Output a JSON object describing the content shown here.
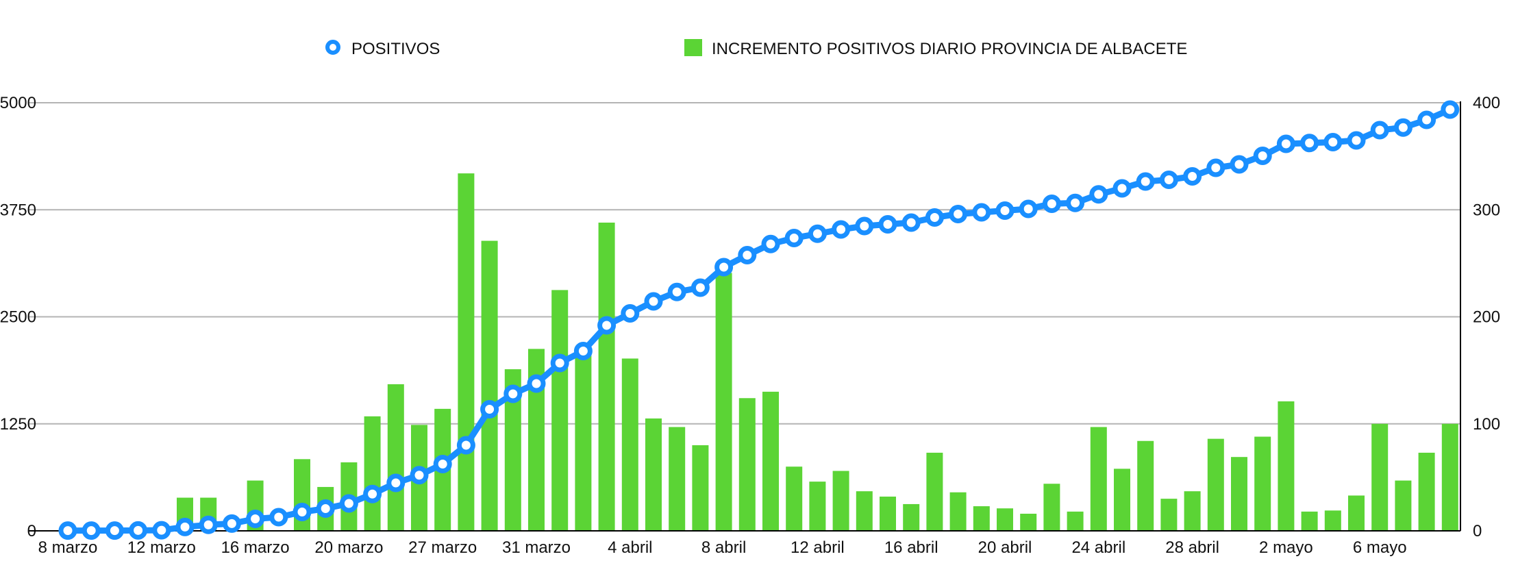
{
  "chart_data": {
    "type": "bar",
    "colors": {
      "line": "#1a8fff",
      "bars": "#5bd435",
      "grid": "#b4b4b4",
      "axis": "#000000"
    },
    "legend": {
      "placement": "top",
      "line_label": "POSITIVOS",
      "bar_label": "INCREMENTO POSITIVOS DIARIO PROVINCIA DE ALBACETE"
    },
    "left_axis": {
      "min": 0,
      "max": 5000,
      "ticks": [
        "0",
        "1250",
        "2500",
        "3750",
        "5000"
      ]
    },
    "right_axis": {
      "min": 0,
      "max": 400,
      "ticks": [
        "0",
        "100",
        "200",
        "300",
        "400"
      ]
    },
    "x_tick_labels": [
      "8 marzo",
      "12 marzo",
      "16 marzo",
      "20 marzo",
      "27 marzo",
      "31 marzo",
      "4 abril",
      "8 abril",
      "12 abril",
      "16 abril",
      "20 abril",
      "24 abril",
      "28 abril",
      "2 mayo",
      "6 mayo"
    ],
    "x_tick_positions": [
      0,
      4,
      8,
      12,
      16,
      20,
      24,
      28,
      32,
      36,
      40,
      44,
      48,
      52,
      56
    ],
    "grid": true,
    "series": [
      {
        "name": "POSITIVOS",
        "type": "line",
        "axis": "left",
        "values": [
          3,
          3,
          3,
          5,
          7,
          45,
          70,
          85,
          140,
          160,
          220,
          260,
          320,
          430,
          560,
          650,
          780,
          1000,
          1420,
          1600,
          1720,
          1960,
          2100,
          2400,
          2540,
          2680,
          2790,
          2840,
          3080,
          3220,
          3350,
          3420,
          3470,
          3520,
          3560,
          3580,
          3600,
          3660,
          3700,
          3720,
          3740,
          3760,
          3820,
          3830,
          3930,
          4000,
          4080,
          4100,
          4140,
          4240,
          4280,
          4380,
          4520,
          4530,
          4540,
          4560,
          4680,
          4710,
          4800,
          4920
        ]
      },
      {
        "name": "INCREMENTO POSITIVOS DIARIO PROVINCIA DE ALBACETE",
        "type": "bar",
        "axis": "right",
        "values": [
          0,
          0,
          0,
          0,
          0,
          31,
          31,
          0,
          47,
          0,
          67,
          41,
          64,
          107,
          137,
          99,
          114,
          334,
          271,
          151,
          170,
          225,
          165,
          288,
          161,
          105,
          97,
          80,
          241,
          124,
          130,
          60,
          46,
          56,
          37,
          32,
          25,
          73,
          36,
          23,
          21,
          16,
          44,
          18,
          97,
          58,
          84,
          30,
          37,
          86,
          69,
          88,
          121,
          18,
          19,
          33,
          100,
          47,
          73,
          100
        ]
      }
    ]
  }
}
